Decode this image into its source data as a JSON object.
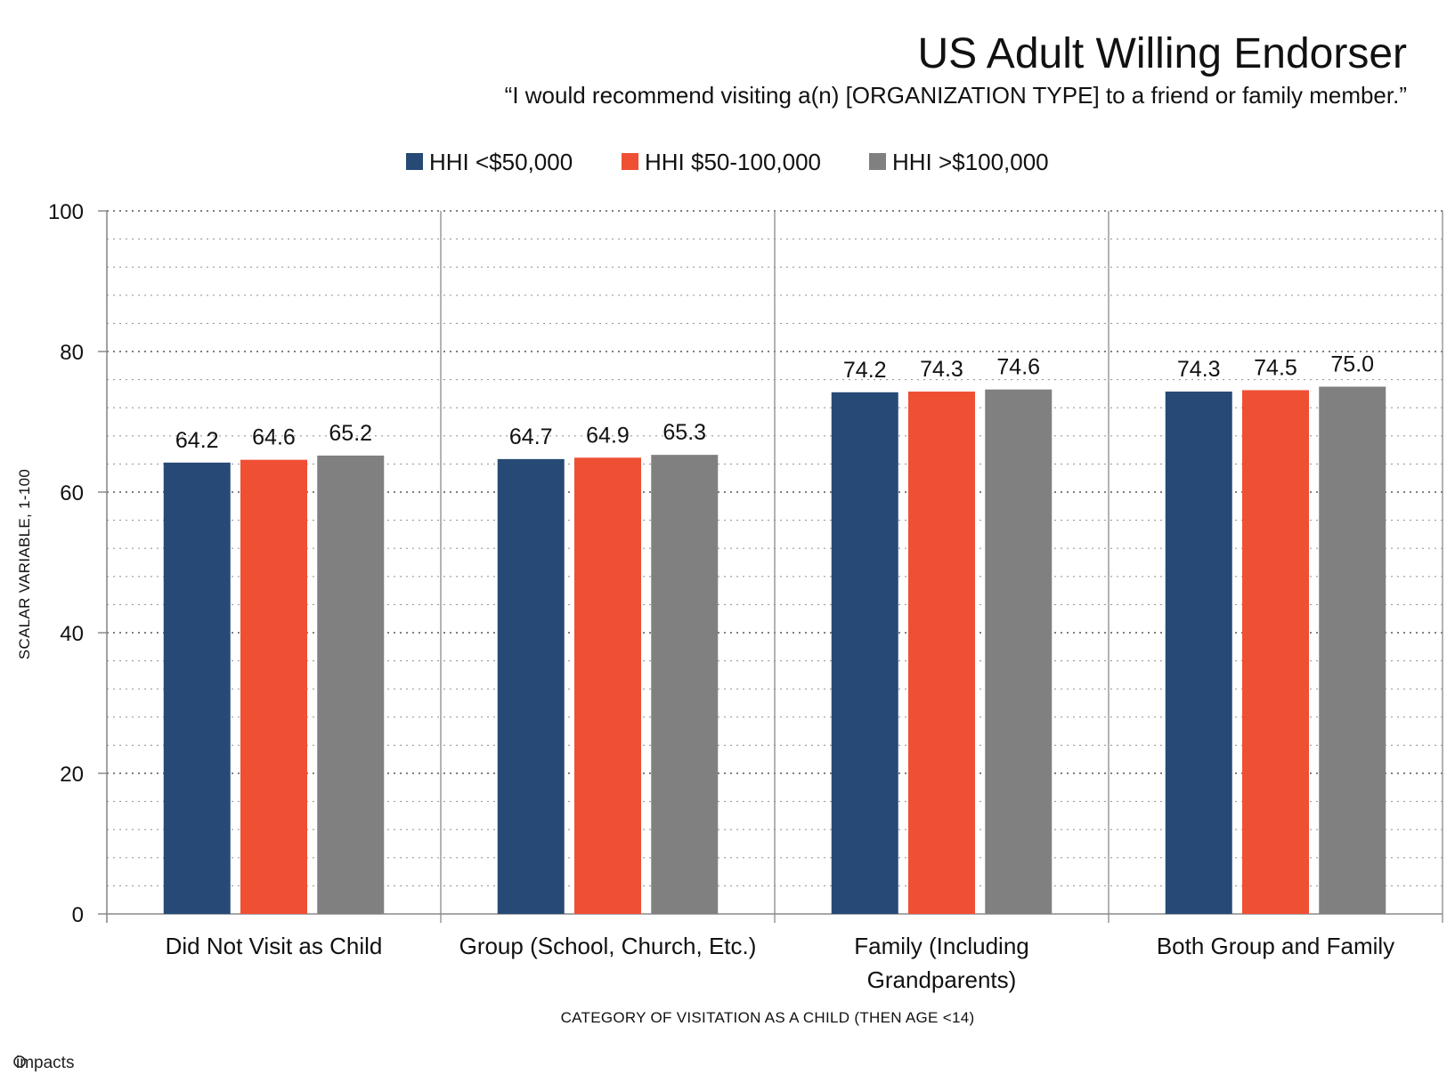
{
  "brand": {
    "logo_text": "impacts"
  },
  "chart_data": {
    "type": "bar",
    "title": "US Adult Willing Endorser",
    "subtitle": "“I would recommend visiting a(n) [ORGANIZATION TYPE] to a friend or family member.”",
    "xlabel": "CATEGORY OF VISITATION AS A CHILD (THEN AGE <14)",
    "ylabel": "SCALAR VARIABLE, 1-100",
    "ylim": [
      0,
      100
    ],
    "yticks": [
      0,
      20,
      40,
      60,
      80,
      100
    ],
    "grid": true,
    "legend_position": "top-center",
    "categories": [
      [
        "Did Not Visit as Child"
      ],
      [
        "Group (School, Church, Etc.)"
      ],
      [
        "Family (Including",
        "Grandparents)"
      ],
      [
        "Both Group and Family"
      ]
    ],
    "series": [
      {
        "name": "HHI <$50,000",
        "color": "#264a75",
        "values": [
          64.2,
          64.7,
          74.2,
          74.3
        ],
        "labels": [
          "64.2",
          "64.7",
          "74.2",
          "74.3"
        ]
      },
      {
        "name": "HHI $50-100,000",
        "color": "#ef4f33",
        "values": [
          64.6,
          64.9,
          74.3,
          74.5
        ],
        "labels": [
          "64.6",
          "64.9",
          "74.3",
          "74.5"
        ]
      },
      {
        "name": "HHI >$100,000",
        "color": "#808080",
        "values": [
          65.2,
          65.3,
          74.6,
          75.0
        ],
        "labels": [
          "65.2",
          "65.3",
          "74.6",
          "75.0"
        ]
      }
    ]
  }
}
